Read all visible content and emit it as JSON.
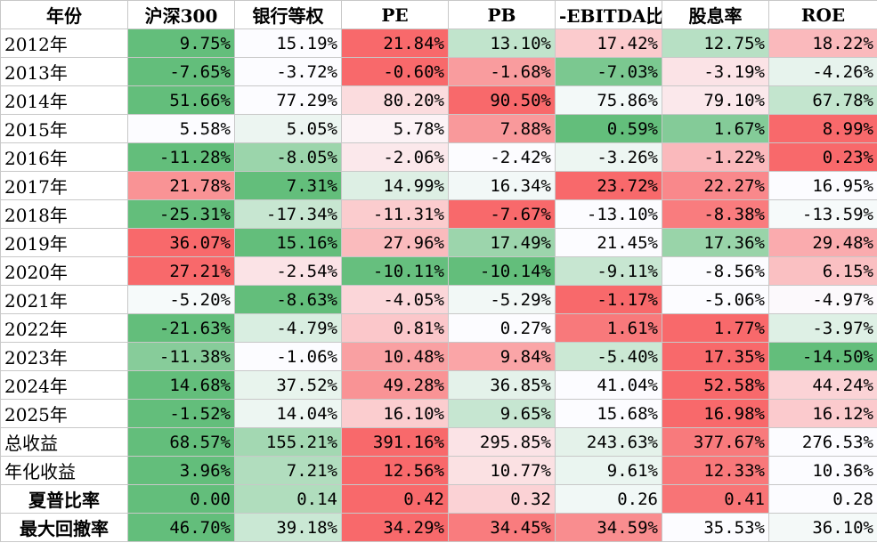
{
  "table": {
    "header": [
      "年份",
      "沪深300",
      "银行等权",
      "PE",
      "PB",
      "-EBITDA比",
      "股息率",
      "ROE"
    ],
    "rows": [
      [
        "2012年",
        "9.75%",
        "15.19%",
        "21.84%",
        "13.10%",
        "17.42%",
        "12.75%",
        "18.22%"
      ],
      [
        "2013年",
        "-7.65%",
        "-3.72%",
        "-0.60%",
        "-1.68%",
        "-7.03%",
        "-3.19%",
        "-4.26%"
      ],
      [
        "2014年",
        "51.66%",
        "77.29%",
        "80.20%",
        "90.50%",
        "75.86%",
        "79.10%",
        "67.78%"
      ],
      [
        "2015年",
        "5.58%",
        "5.05%",
        "5.78%",
        "7.88%",
        "0.59%",
        "1.67%",
        "8.99%"
      ],
      [
        "2016年",
        "-11.28%",
        "-8.05%",
        "-2.06%",
        "-2.42%",
        "-3.26%",
        "-1.22%",
        "0.23%"
      ],
      [
        "2017年",
        "21.78%",
        "7.31%",
        "14.99%",
        "16.34%",
        "23.72%",
        "22.27%",
        "16.95%"
      ],
      [
        "2018年",
        "-25.31%",
        "-17.34%",
        "-11.31%",
        "-7.67%",
        "-13.10%",
        "-8.38%",
        "-13.59%"
      ],
      [
        "2019年",
        "36.07%",
        "15.16%",
        "27.96%",
        "17.49%",
        "21.45%",
        "17.36%",
        "29.48%"
      ],
      [
        "2020年",
        "27.21%",
        "-2.54%",
        "-10.11%",
        "-10.14%",
        "-9.11%",
        "-8.56%",
        "6.15%"
      ],
      [
        "2021年",
        "-5.20%",
        "-8.63%",
        "-4.05%",
        "-5.29%",
        "-1.17%",
        "-5.06%",
        "-4.97%"
      ],
      [
        "2022年",
        "-21.63%",
        "-4.79%",
        "0.81%",
        "0.27%",
        "1.61%",
        "1.77%",
        "-3.97%"
      ],
      [
        "2023年",
        "-11.38%",
        "-1.06%",
        "10.48%",
        "9.84%",
        "-5.40%",
        "17.35%",
        "-14.50%"
      ],
      [
        "2024年",
        "14.68%",
        "37.52%",
        "49.28%",
        "36.85%",
        "41.04%",
        "52.58%",
        "44.24%"
      ],
      [
        "2025年",
        "-1.52%",
        "14.04%",
        "16.10%",
        "9.65%",
        "15.68%",
        "16.98%",
        "16.12%"
      ],
      [
        "总收益",
        "68.57%",
        "155.21%",
        "391.16%",
        "295.85%",
        "243.63%",
        "377.67%",
        "276.53%"
      ],
      [
        "年化收益",
        "3.96%",
        "7.21%",
        "12.56%",
        "10.77%",
        "9.61%",
        "12.33%",
        "10.36%"
      ],
      [
        "夏普比率",
        "0.00",
        "0.14",
        "0.42",
        "0.32",
        "0.26",
        "0.41",
        "0.28"
      ],
      [
        "最大回撤率",
        "46.70%",
        "39.18%",
        "34.29%",
        "34.45%",
        "34.59%",
        "35.53%",
        "36.10%"
      ]
    ]
  }
}
